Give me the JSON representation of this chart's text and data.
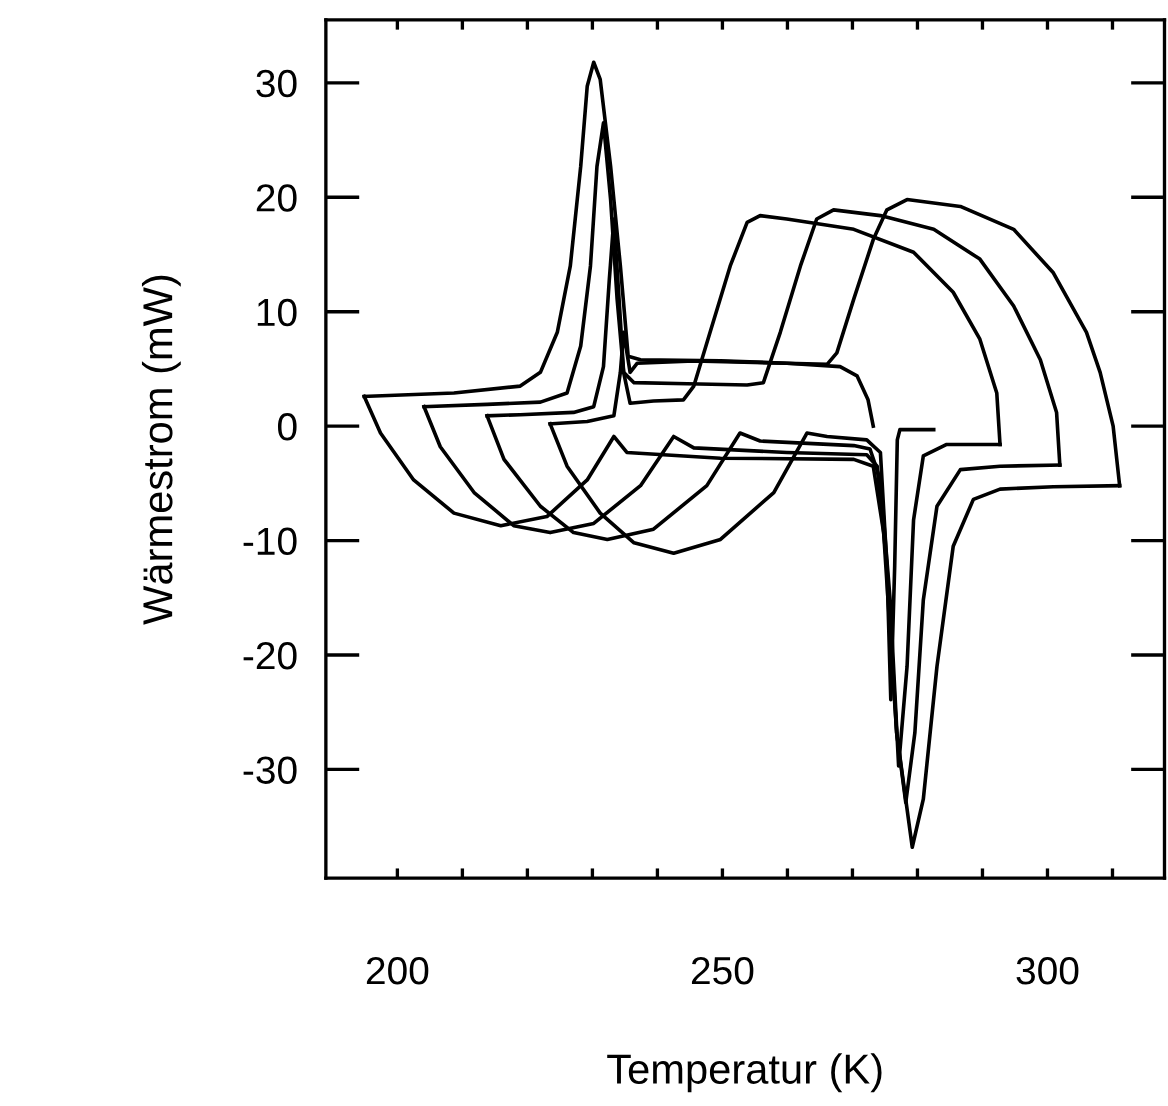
{
  "chart_data": {
    "type": "line",
    "xlabel": "Temperatur (K)",
    "ylabel": "Wärmestrom (mW)",
    "xlim": [
      189,
      318
    ],
    "ylim": [
      -39.5,
      35.5
    ],
    "xticks": [
      200,
      {
        "value": 210,
        "label": null
      },
      {
        "value": 220,
        "label": null
      },
      {
        "value": 230,
        "label": null
      },
      {
        "value": 240,
        "label": null
      },
      250,
      {
        "value": 260,
        "label": null
      },
      {
        "value": 270,
        "label": null
      },
      {
        "value": 280,
        "label": null
      },
      {
        "value": 290,
        "label": null
      },
      300,
      {
        "value": 310,
        "label": null
      }
    ],
    "yticks": [
      -30,
      -20,
      -10,
      0,
      10,
      20,
      30
    ],
    "grid": false,
    "marker": "none",
    "line_style": "solid",
    "series": [
      {
        "color": "#000000",
        "x": [
          311.1,
          310.1,
          308.1,
          306.0,
          300.9,
          294.8,
          286.6,
          278.4,
          275.3,
          273.2,
          270.2,
          267.6,
          266.1,
          259.9,
          249.7,
          237.4,
          235.5,
          234.3,
          232.8,
          231.2,
          230.2,
          229.2,
          228.2,
          226.6,
          224.6,
          222.0,
          218.9,
          208.7,
          194.9
        ],
        "values": [
          -5.2,
          0.0,
          4.7,
          8.2,
          13.4,
          17.2,
          19.2,
          19.8,
          18.9,
          16.3,
          11.1,
          6.4,
          5.4,
          5.5,
          5.7,
          5.8,
          6.1,
          14.0,
          22.7,
          30.3,
          31.8,
          29.7,
          22.7,
          14.0,
          8.2,
          4.7,
          3.5,
          2.9,
          2.6
        ]
      },
      {
        "color": "#000000",
        "x": [
          194.9,
          197.4,
          202.5,
          208.7,
          215.9,
          223.0,
          229.2,
          233.3,
          235.3,
          249.7,
          270.2,
          273.2,
          274.8,
          276.8,
          279.2,
          280.9,
          283.0,
          285.5,
          288.6,
          292.7,
          300.9,
          311.1
        ],
        "values": [
          2.6,
          -0.6,
          -4.7,
          -7.6,
          -8.7,
          -7.9,
          -4.7,
          -0.9,
          -2.3,
          -2.8,
          -2.9,
          -3.5,
          -9.3,
          -26.8,
          -36.8,
          -32.6,
          -21.0,
          -10.5,
          -6.4,
          -5.5,
          -5.3,
          -5.2
        ]
      },
      {
        "color": "#000000",
        "x": [
          301.9,
          301.4,
          298.9,
          294.8,
          289.6,
          282.5,
          274.3,
          267.1,
          264.5,
          262.0,
          258.9,
          256.3,
          253.8,
          244.6,
          236.4,
          234.8,
          233.8,
          232.8,
          231.7,
          230.7,
          229.7,
          228.2,
          226.1,
          222.0,
          213.8,
          204.1
        ],
        "values": [
          -3.4,
          1.2,
          5.8,
          10.5,
          14.6,
          17.2,
          18.4,
          18.9,
          18.1,
          14.0,
          8.2,
          3.8,
          3.6,
          3.7,
          3.8,
          4.7,
          11.1,
          19.8,
          26.5,
          22.7,
          14.0,
          7.0,
          2.9,
          2.1,
          1.9,
          1.7
        ]
      },
      {
        "color": "#000000",
        "x": [
          204.1,
          206.6,
          211.8,
          217.9,
          223.5,
          230.2,
          237.4,
          242.5,
          245.6,
          259.9,
          272.2,
          273.8,
          275.3,
          276.8,
          278.2,
          279.6,
          280.9,
          283.0,
          286.6,
          292.7,
          301.9
        ],
        "values": [
          1.7,
          -1.8,
          -5.8,
          -8.7,
          -9.3,
          -8.5,
          -5.2,
          -0.9,
          -1.9,
          -2.3,
          -2.5,
          -3.5,
          -12.2,
          -26.8,
          -32.9,
          -26.8,
          -15.2,
          -7.0,
          -3.8,
          -3.5,
          -3.4
        ]
      },
      {
        "color": "#000000",
        "x": [
          292.7,
          292.2,
          289.6,
          285.5,
          279.4,
          270.2,
          259.9,
          255.8,
          253.8,
          251.2,
          248.1,
          245.6,
          244.0,
          239.4,
          235.8,
          234.8,
          234.1,
          233.3,
          232.6,
          231.7,
          230.2,
          227.1,
          218.9,
          213.8
        ],
        "values": [
          -1.6,
          2.9,
          7.6,
          11.7,
          15.2,
          17.2,
          18.1,
          18.4,
          17.8,
          14.0,
          8.2,
          3.5,
          2.3,
          2.2,
          2.0,
          4.7,
          11.1,
          18.1,
          12.8,
          5.2,
          1.7,
          1.2,
          1.0,
          0.9
        ]
      },
      {
        "color": "#000000",
        "x": [
          213.8,
          216.4,
          222.0,
          227.1,
          232.3,
          239.4,
          247.6,
          252.7,
          255.8,
          270.2,
          272.7,
          274.3,
          275.8,
          277.1,
          278.4,
          279.4,
          280.9,
          284.5,
          292.7
        ],
        "values": [
          0.9,
          -2.9,
          -7.0,
          -9.3,
          -9.9,
          -9.0,
          -5.2,
          -0.6,
          -1.3,
          -1.7,
          -2.0,
          -4.7,
          -15.2,
          -29.7,
          -21.0,
          -8.2,
          -2.6,
          -1.6,
          -1.6
        ]
      },
      {
        "color": "#000000",
        "x": [
          273.2,
          272.4,
          270.7,
          268.1,
          259.9,
          245.6,
          236.9,
          235.8,
          234.8,
          234.3,
          233.3,
          229.2,
          223.5
        ],
        "values": [
          0.0,
          2.3,
          4.4,
          5.2,
          5.5,
          5.7,
          5.5,
          4.7,
          8.2,
          4.7,
          0.9,
          0.4,
          0.2
        ]
      },
      {
        "color": "#000000",
        "x": [
          223.5,
          226.1,
          231.2,
          236.4,
          242.5,
          249.7,
          257.9,
          263.0,
          266.1,
          272.2,
          274.3,
          275.3,
          275.9,
          276.5,
          276.9,
          277.3,
          282.5
        ],
        "values": [
          0.2,
          -3.5,
          -7.6,
          -10.2,
          -11.1,
          -9.9,
          -5.8,
          -0.6,
          -0.9,
          -1.2,
          -2.3,
          -12.2,
          -23.9,
          -12.2,
          -1.2,
          -0.3,
          -0.3
        ]
      }
    ]
  }
}
